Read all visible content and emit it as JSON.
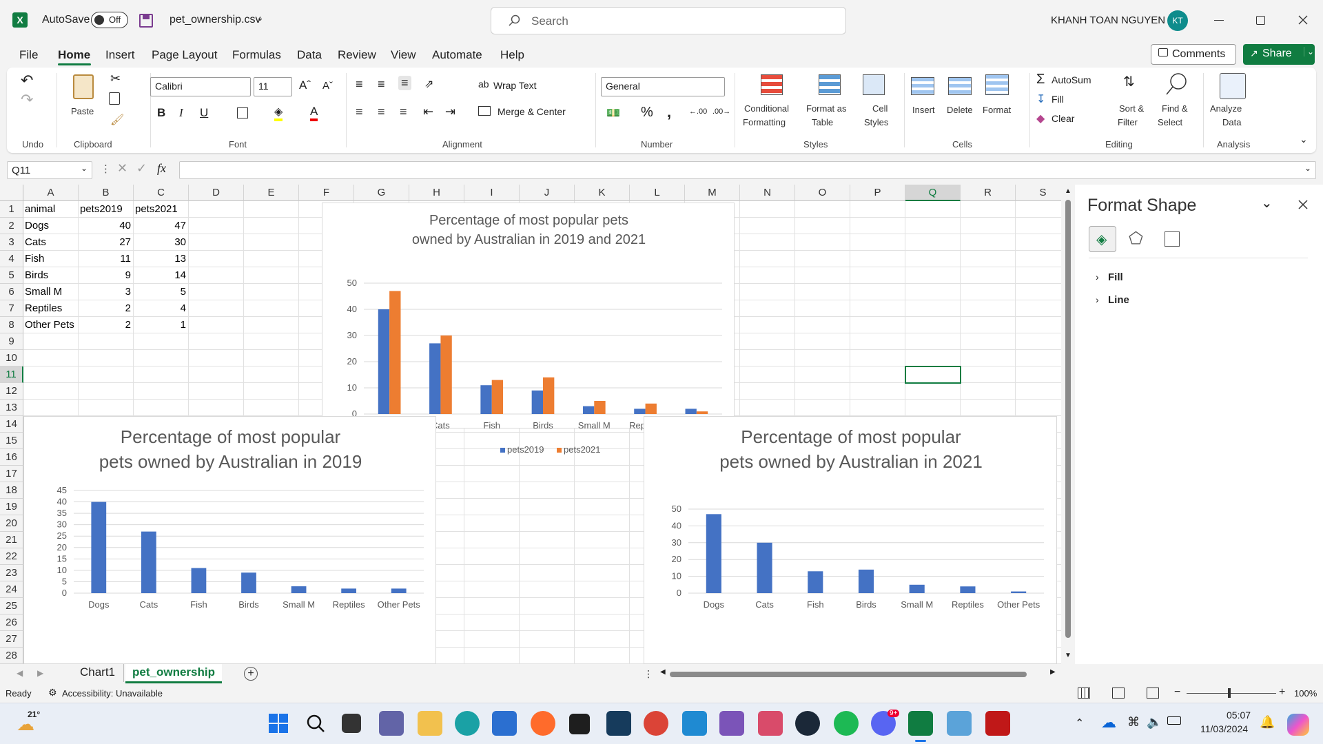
{
  "titlebar": {
    "autosave_label": "AutoSave",
    "autosave_state": "Off",
    "filename": "pet_ownership.csv",
    "search_placeholder": "Search",
    "user_name": "KHANH TOAN NGUYEN",
    "user_initials": "KT"
  },
  "menu": {
    "tabs": [
      "File",
      "Home",
      "Insert",
      "Page Layout",
      "Formulas",
      "Data",
      "Review",
      "View",
      "Automate",
      "Help"
    ],
    "active": "Home",
    "comments_label": "Comments",
    "share_label": "Share"
  },
  "ribbon": {
    "paste": "Paste",
    "font_name": "Calibri",
    "font_size": "11",
    "wrap_text": "Wrap Text",
    "merge_center": "Merge & Center",
    "number_format": "General",
    "conditional_formatting": [
      "Conditional",
      "Formatting"
    ],
    "format_as_table": [
      "Format as",
      "Table"
    ],
    "cell_styles": [
      "Cell",
      "Styles"
    ],
    "insert": "Insert",
    "delete": "Delete",
    "format": "Format",
    "autosum": "AutoSum",
    "fill": "Fill",
    "clear": "Clear",
    "sort_filter": [
      "Sort &",
      "Filter"
    ],
    "find_select": [
      "Find &",
      "Select"
    ],
    "analyze_data": [
      "Analyze",
      "Data"
    ],
    "groups": {
      "undo": "Undo",
      "clipboard": "Clipboard",
      "font": "Font",
      "alignment": "Alignment",
      "number": "Number",
      "styles": "Styles",
      "cells": "Cells",
      "editing": "Editing",
      "analysis": "Analysis"
    }
  },
  "formula_bar": {
    "name_box": "Q11",
    "fx": "fx",
    "formula": ""
  },
  "columns": [
    "A",
    "B",
    "C",
    "D",
    "E",
    "F",
    "G",
    "H",
    "I",
    "J",
    "K",
    "L",
    "M",
    "N",
    "O",
    "P",
    "Q",
    "R",
    "S"
  ],
  "rows": [
    "1",
    "2",
    "3",
    "4",
    "5",
    "6",
    "7",
    "8",
    "9",
    "10",
    "11",
    "12",
    "13",
    "14",
    "15",
    "16",
    "17",
    "18",
    "19",
    "20",
    "21",
    "22",
    "23",
    "24",
    "25",
    "26",
    "27",
    "28"
  ],
  "table": {
    "headers": [
      "animal",
      "pets2019",
      "pets2021"
    ],
    "rows": [
      [
        "Dogs",
        "40",
        "47"
      ],
      [
        "Cats",
        "27",
        "30"
      ],
      [
        "Fish",
        "11",
        "13"
      ],
      [
        "Birds",
        "9",
        "14"
      ],
      [
        "Small M",
        "3",
        "5"
      ],
      [
        "Reptiles",
        "2",
        "4"
      ],
      [
        "Other Pets",
        "2",
        "1"
      ]
    ]
  },
  "chart_data": [
    {
      "type": "bar",
      "title": "Percentage of  most popular pets owned by Australian in 2019 and 2021",
      "categories": [
        "Dogs",
        "Cats",
        "Fish",
        "Birds",
        "Small M",
        "Reptiles",
        "Other Pets"
      ],
      "series": [
        {
          "name": "pets2019",
          "values": [
            40,
            27,
            11,
            9,
            3,
            2,
            2
          ]
        },
        {
          "name": "pets2021",
          "values": [
            47,
            30,
            13,
            14,
            5,
            4,
            1
          ]
        }
      ],
      "yticks": [
        0,
        10,
        20,
        30,
        40,
        50
      ],
      "ylim": [
        0,
        50
      ],
      "legend": "bottom",
      "colors": [
        "#4472c4",
        "#ed7d31"
      ]
    },
    {
      "type": "bar",
      "title": "Percentage of  most popular pets owned by Australian in 2019",
      "categories": [
        "Dogs",
        "Cats",
        "Fish",
        "Birds",
        "Small M",
        "Reptiles",
        "Other Pets"
      ],
      "values": [
        40,
        27,
        11,
        9,
        3,
        2,
        2
      ],
      "yticks": [
        0,
        5,
        10,
        15,
        20,
        25,
        30,
        35,
        40,
        45
      ],
      "ylim": [
        0,
        45
      ],
      "colors": [
        "#4472c4"
      ]
    },
    {
      "type": "bar",
      "title": "Percentage of  most popular pets owned by Australian in 2021",
      "categories": [
        "Dogs",
        "Cats",
        "Fish",
        "Birds",
        "Small M",
        "Reptiles",
        "Other Pets"
      ],
      "values": [
        47,
        30,
        13,
        14,
        5,
        4,
        1
      ],
      "yticks": [
        0,
        10,
        20,
        30,
        40,
        50
      ],
      "ylim": [
        0,
        50
      ],
      "colors": [
        "#4472c4"
      ]
    }
  ],
  "format_pane": {
    "title": "Format Shape",
    "sections": [
      "Fill",
      "Line"
    ]
  },
  "sheets": {
    "tabs": [
      "Chart1",
      "pet_ownership"
    ],
    "active": "pet_ownership"
  },
  "status": {
    "ready": "Ready",
    "accessibility": "Accessibility: Unavailable",
    "zoom": "100%"
  },
  "taskbar": {
    "temperature": "21°",
    "time": "05:07",
    "date": "11/03/2024",
    "discord_badge": "9+"
  }
}
